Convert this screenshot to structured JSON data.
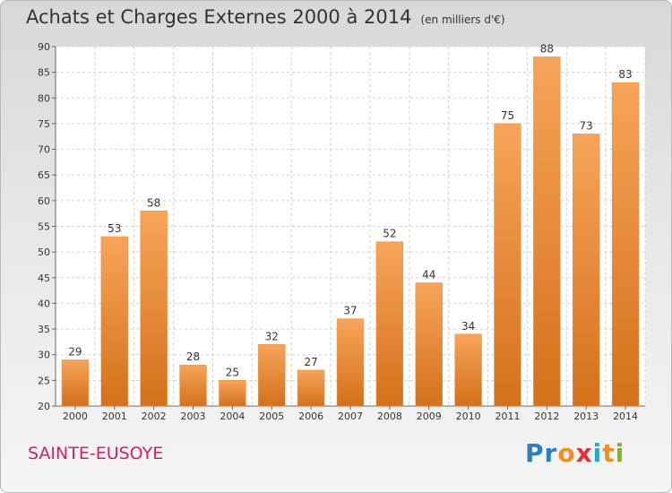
{
  "title": "Achats et Charges Externes 2000 à 2014",
  "unit": "(en milliers d'€)",
  "commune": "SAINTE-EUSOYE",
  "logo": {
    "text": "Proxiti",
    "colors": [
      "#2a7fc1",
      "#2a7fc1",
      "#f28e1c",
      "#e0303a",
      "#2aa6c8",
      "#f28e1c",
      "#7ab829"
    ]
  },
  "bar_color": "#f08c2e",
  "chart_data": {
    "type": "bar",
    "title": "Achats et Charges Externes 2000 à 2014",
    "categories": [
      "2000",
      "2001",
      "2002",
      "2003",
      "2004",
      "2005",
      "2006",
      "2007",
      "2008",
      "2009",
      "2010",
      "2011",
      "2012",
      "2013",
      "2014"
    ],
    "values": [
      29,
      53,
      58,
      28,
      25,
      32,
      27,
      37,
      52,
      44,
      34,
      75,
      88,
      73,
      83
    ],
    "ylim": [
      20,
      90
    ],
    "yticks": [
      20,
      25,
      30,
      35,
      40,
      45,
      50,
      55,
      60,
      65,
      70,
      75,
      80,
      85,
      90
    ],
    "grid": true,
    "xlabel": "",
    "ylabel": ""
  }
}
